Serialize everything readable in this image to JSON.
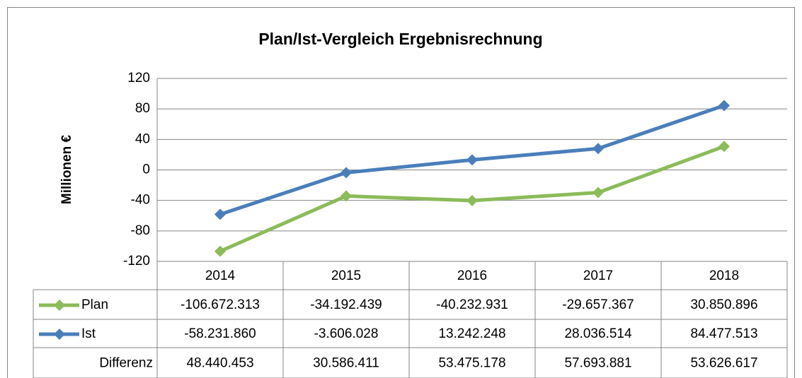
{
  "chart_data": {
    "type": "line",
    "title": "Plan/Ist-Vergleich Ergebnisrechnung",
    "y_label": "Millionen €",
    "categories": [
      "2014",
      "2015",
      "2016",
      "2017",
      "2018"
    ],
    "series": [
      {
        "name": "Plan",
        "color": "#8cbb5a",
        "values": [
          -106.672313,
          -34.192439,
          -40.232931,
          -29.657367,
          30.850896
        ],
        "value_labels": [
          "-106.672.313",
          "-34.192.439",
          "-40.232.931",
          "-29.657.367",
          "30.850.896"
        ]
      },
      {
        "name": "Ist",
        "color": "#4a7ebb",
        "values": [
          -58.23186,
          -3.606028,
          13.242248,
          28.036514,
          84.477513
        ],
        "value_labels": [
          "-58.231.860",
          "-3.606.028",
          "13.242.248",
          "28.036.514",
          "84.477.513"
        ]
      },
      {
        "name": "Differenz",
        "values": [
          48.440453,
          30.586411,
          53.475178,
          57.693881,
          53.626617
        ],
        "value_labels": [
          "48.440.453",
          "30.586.411",
          "53.475.178",
          "57.693.881",
          "53.626.617"
        ]
      }
    ],
    "ylim": [
      -120,
      120
    ],
    "yticks": [
      -120,
      -80,
      -40,
      0,
      40,
      80,
      120
    ],
    "grid": true
  }
}
